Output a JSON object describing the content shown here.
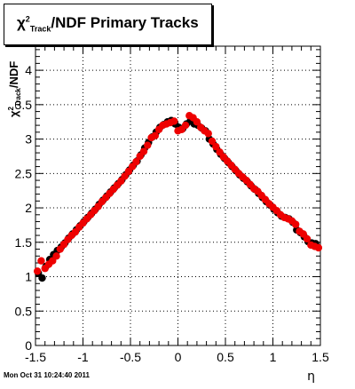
{
  "chart_data": {
    "type": "scatter",
    "title": "χ²_Track/NDF  Primary Tracks",
    "title_parts": {
      "chi": "χ",
      "sup": "2",
      "sub": "Track",
      "rest": "/NDF  Primary Tracks"
    },
    "xlabel": "η",
    "ylabel": "χ²_Track/NDF",
    "ylabel_parts": {
      "chi": "χ",
      "sup": "2",
      "sub": "Track",
      "rest": "/NDF"
    },
    "xlim": [
      -1.5,
      1.5
    ],
    "ylim": [
      0,
      4.35
    ],
    "x_ticks": [
      -1.5,
      -1,
      -0.5,
      0,
      0.5,
      1,
      1.5
    ],
    "x_tick_labels": [
      "-1.5",
      "-1",
      "-0.5",
      "0",
      "0.5",
      "1",
      "1.5"
    ],
    "y_ticks": [
      0,
      0.5,
      1,
      1.5,
      2,
      2.5,
      3,
      3.5,
      4
    ],
    "y_tick_labels": [
      "0",
      "0.5",
      "1",
      "1.5",
      "2",
      "2.5",
      "3",
      "3.5",
      "4"
    ],
    "grid": true,
    "colors": {
      "series_black": "#000000",
      "series_red": "#ee0000"
    },
    "series": [
      {
        "color": "#000000",
        "points": [
          [
            -1.47,
            1.05
          ],
          [
            -1.43,
            0.98
          ],
          [
            -1.39,
            1.15
          ],
          [
            -1.35,
            1.25
          ],
          [
            -1.31,
            1.32
          ],
          [
            -1.27,
            1.38
          ],
          [
            -1.23,
            1.43
          ],
          [
            -1.19,
            1.49
          ],
          [
            -1.15,
            1.56
          ],
          [
            -1.11,
            1.62
          ],
          [
            -1.07,
            1.68
          ],
          [
            -1.03,
            1.74
          ],
          [
            -0.99,
            1.8
          ],
          [
            -0.95,
            1.86
          ],
          [
            -0.91,
            1.92
          ],
          [
            -0.87,
            1.98
          ],
          [
            -0.83,
            2.05
          ],
          [
            -0.79,
            2.11
          ],
          [
            -0.75,
            2.17
          ],
          [
            -0.71,
            2.23
          ],
          [
            -0.67,
            2.29
          ],
          [
            -0.63,
            2.35
          ],
          [
            -0.59,
            2.41
          ],
          [
            -0.55,
            2.48
          ],
          [
            -0.51,
            2.55
          ],
          [
            -0.47,
            2.62
          ],
          [
            -0.43,
            2.68
          ],
          [
            -0.39,
            2.77
          ],
          [
            -0.35,
            2.87
          ],
          [
            -0.31,
            2.95
          ],
          [
            -0.27,
            3.03
          ],
          [
            -0.23,
            3.1
          ],
          [
            -0.19,
            3.17
          ],
          [
            -0.15,
            3.21
          ],
          [
            -0.11,
            3.25
          ],
          [
            -0.07,
            3.27
          ],
          [
            -0.03,
            3.22
          ],
          [
            0.01,
            3.17
          ],
          [
            0.05,
            3.15
          ],
          [
            0.09,
            3.22
          ],
          [
            0.13,
            3.26
          ],
          [
            0.17,
            3.22
          ],
          [
            0.21,
            3.2
          ],
          [
            0.25,
            3.16
          ],
          [
            0.29,
            3.12
          ],
          [
            0.33,
            3.0
          ],
          [
            0.37,
            2.93
          ],
          [
            0.41,
            2.85
          ],
          [
            0.45,
            2.78
          ],
          [
            0.49,
            2.72
          ],
          [
            0.53,
            2.66
          ],
          [
            0.57,
            2.6
          ],
          [
            0.61,
            2.54
          ],
          [
            0.65,
            2.48
          ],
          [
            0.69,
            2.43
          ],
          [
            0.73,
            2.38
          ],
          [
            0.77,
            2.32
          ],
          [
            0.81,
            2.27
          ],
          [
            0.85,
            2.21
          ],
          [
            0.89,
            2.15
          ],
          [
            0.93,
            2.09
          ],
          [
            0.97,
            2.04
          ],
          [
            1.01,
            1.98
          ],
          [
            1.05,
            1.93
          ],
          [
            1.09,
            1.88
          ],
          [
            1.13,
            1.86
          ],
          [
            1.17,
            1.84
          ],
          [
            1.21,
            1.79
          ],
          [
            1.25,
            1.68
          ],
          [
            1.29,
            1.64
          ],
          [
            1.33,
            1.58
          ],
          [
            1.37,
            1.51
          ],
          [
            1.41,
            1.49
          ],
          [
            1.45,
            1.48
          ]
        ]
      },
      {
        "color": "#ee0000",
        "points": [
          [
            -1.48,
            1.08
          ],
          [
            -1.44,
            1.23
          ],
          [
            -1.4,
            1.12
          ],
          [
            -1.36,
            1.18
          ],
          [
            -1.32,
            1.23
          ],
          [
            -1.28,
            1.3
          ],
          [
            -1.24,
            1.4
          ],
          [
            -1.2,
            1.47
          ],
          [
            -1.16,
            1.54
          ],
          [
            -1.12,
            1.6
          ],
          [
            -1.08,
            1.65
          ],
          [
            -1.04,
            1.72
          ],
          [
            -1.0,
            1.78
          ],
          [
            -0.96,
            1.84
          ],
          [
            -0.92,
            1.9
          ],
          [
            -0.88,
            1.96
          ],
          [
            -0.84,
            2.02
          ],
          [
            -0.8,
            2.09
          ],
          [
            -0.76,
            2.15
          ],
          [
            -0.72,
            2.21
          ],
          [
            -0.68,
            2.27
          ],
          [
            -0.64,
            2.33
          ],
          [
            -0.6,
            2.39
          ],
          [
            -0.56,
            2.46
          ],
          [
            -0.52,
            2.53
          ],
          [
            -0.48,
            2.6
          ],
          [
            -0.44,
            2.67
          ],
          [
            -0.4,
            2.75
          ],
          [
            -0.36,
            2.82
          ],
          [
            -0.32,
            2.91
          ],
          [
            -0.28,
            3.02
          ],
          [
            -0.24,
            3.05
          ],
          [
            -0.2,
            3.14
          ],
          [
            -0.16,
            3.2
          ],
          [
            -0.12,
            3.22
          ],
          [
            -0.08,
            3.24
          ],
          [
            -0.04,
            3.26
          ],
          [
            0.0,
            3.12
          ],
          [
            0.04,
            3.14
          ],
          [
            0.08,
            3.2
          ],
          [
            0.12,
            3.34
          ],
          [
            0.16,
            3.31
          ],
          [
            0.2,
            3.25
          ],
          [
            0.24,
            3.17
          ],
          [
            0.28,
            3.12
          ],
          [
            0.32,
            3.08
          ],
          [
            0.36,
            2.97
          ],
          [
            0.4,
            2.89
          ],
          [
            0.44,
            2.81
          ],
          [
            0.48,
            2.74
          ],
          [
            0.52,
            2.68
          ],
          [
            0.56,
            2.62
          ],
          [
            0.6,
            2.56
          ],
          [
            0.64,
            2.5
          ],
          [
            0.68,
            2.45
          ],
          [
            0.72,
            2.4
          ],
          [
            0.76,
            2.34
          ],
          [
            0.8,
            2.28
          ],
          [
            0.84,
            2.24
          ],
          [
            0.88,
            2.18
          ],
          [
            0.92,
            2.12
          ],
          [
            0.96,
            2.06
          ],
          [
            1.0,
            2.01
          ],
          [
            1.04,
            1.96
          ],
          [
            1.08,
            1.9
          ],
          [
            1.12,
            1.86
          ],
          [
            1.16,
            1.84
          ],
          [
            1.2,
            1.81
          ],
          [
            1.24,
            1.76
          ],
          [
            1.28,
            1.66
          ],
          [
            1.32,
            1.62
          ],
          [
            1.36,
            1.55
          ],
          [
            1.4,
            1.46
          ],
          [
            1.44,
            1.44
          ],
          [
            1.48,
            1.42
          ]
        ]
      }
    ]
  },
  "footer": {
    "timestamp": "Mon Oct 31 10:24:40 2011"
  }
}
